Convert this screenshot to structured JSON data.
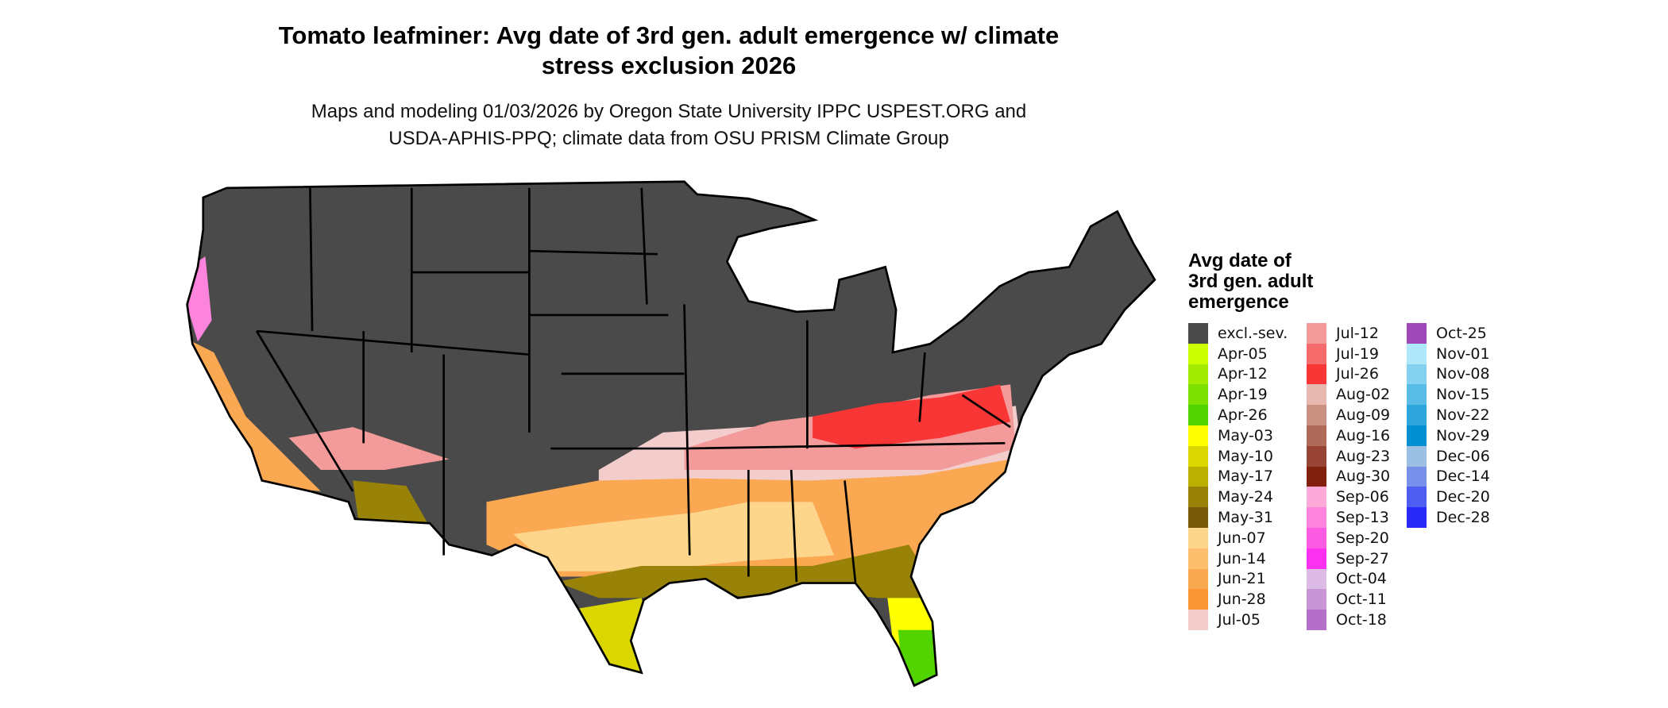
{
  "title": [
    "Tomato leafminer: Avg date of 3rd gen. adult emergence w/ climate",
    "stress exclusion 2026"
  ],
  "subtitle": [
    "Maps and modeling 01/03/2026 by Oregon State University IPPC USPEST.ORG and",
    "USDA-APHIS-PPQ; climate data from OSU PRISM Climate Group"
  ],
  "legend": {
    "title": [
      "Avg date of",
      "3rd gen. adult",
      "emergence"
    ],
    "items": [
      {
        "label": "excl.-sev.",
        "color": "#4a4a4a"
      },
      {
        "label": "Apr-05",
        "color": "#ccff00"
      },
      {
        "label": "Apr-12",
        "color": "#a3ec00"
      },
      {
        "label": "Apr-19",
        "color": "#7de000"
      },
      {
        "label": "Apr-26",
        "color": "#52d400"
      },
      {
        "label": "May-03",
        "color": "#ffff00"
      },
      {
        "label": "May-10",
        "color": "#dcd600"
      },
      {
        "label": "May-17",
        "color": "#bab000"
      },
      {
        "label": "May-24",
        "color": "#988208"
      },
      {
        "label": "May-31",
        "color": "#775a08"
      },
      {
        "label": "Jun-07",
        "color": "#fdd68c"
      },
      {
        "label": "Jun-14",
        "color": "#fdbe6e"
      },
      {
        "label": "Jun-21",
        "color": "#fba852"
      },
      {
        "label": "Jun-28",
        "color": "#fb9636"
      },
      {
        "label": "Jul-05",
        "color": "#f3cccc"
      },
      {
        "label": "Jul-12",
        "color": "#f39a9a"
      },
      {
        "label": "Jul-19",
        "color": "#f56a6a"
      },
      {
        "label": "Jul-26",
        "color": "#f93636"
      },
      {
        "label": "Aug-02",
        "color": "#e6b8b0"
      },
      {
        "label": "Aug-09",
        "color": "#ca9082"
      },
      {
        "label": "Aug-16",
        "color": "#b06a5a"
      },
      {
        "label": "Aug-23",
        "color": "#984434"
      },
      {
        "label": "Aug-30",
        "color": "#82200e"
      },
      {
        "label": "Sep-06",
        "color": "#fcaad8"
      },
      {
        "label": "Sep-13",
        "color": "#fc84dc"
      },
      {
        "label": "Sep-20",
        "color": "#fc5ce4"
      },
      {
        "label": "Sep-27",
        "color": "#fc30f0"
      },
      {
        "label": "Oct-04",
        "color": "#dcbce4"
      },
      {
        "label": "Oct-11",
        "color": "#c896d4"
      },
      {
        "label": "Oct-18",
        "color": "#b470c8"
      },
      {
        "label": "Oct-25",
        "color": "#9e48ba"
      },
      {
        "label": "Nov-01",
        "color": "#aee8fa"
      },
      {
        "label": "Nov-08",
        "color": "#84d2f0"
      },
      {
        "label": "Nov-15",
        "color": "#58bce6"
      },
      {
        "label": "Nov-22",
        "color": "#2ea6dc"
      },
      {
        "label": "Nov-29",
        "color": "#0090d2"
      },
      {
        "label": "Dec-06",
        "color": "#9cc0e4"
      },
      {
        "label": "Dec-14",
        "color": "#7890ea"
      },
      {
        "label": "Dec-20",
        "color": "#4e5ef0"
      },
      {
        "label": "Dec-28",
        "color": "#2a2af8"
      }
    ]
  }
}
